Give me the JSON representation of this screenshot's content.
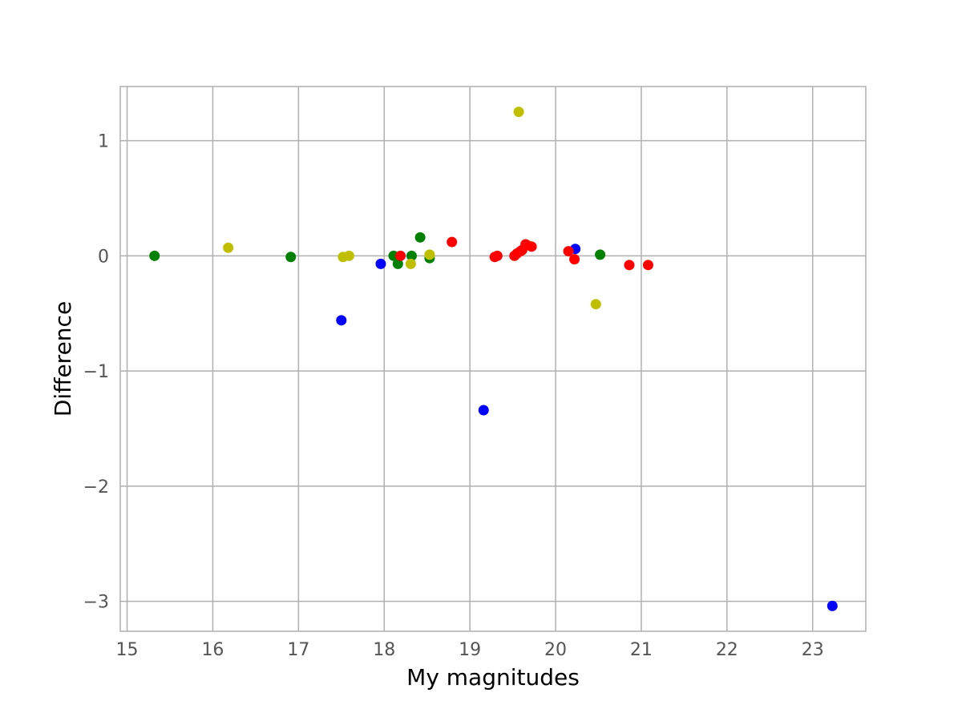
{
  "chart_data": {
    "type": "scatter",
    "title": "",
    "xlabel": "My magnitudes",
    "ylabel": "Difference",
    "xlim": [
      14.92,
      23.62
    ],
    "ylim": [
      -3.26,
      1.47
    ],
    "x_ticks": [
      15,
      16,
      17,
      18,
      19,
      20,
      21,
      22,
      23
    ],
    "y_ticks": [
      1,
      0,
      -1,
      -2,
      -3
    ],
    "x_tick_labels": [
      "15",
      "16",
      "17",
      "18",
      "19",
      "20",
      "21",
      "22",
      "23"
    ],
    "y_tick_labels": [
      "1",
      "0",
      "−1",
      "−2",
      "−3"
    ],
    "grid": true,
    "series": [
      {
        "color": "#0000ff",
        "points": [
          [
            17.5,
            -0.56
          ],
          [
            17.96,
            -0.07
          ],
          [
            19.16,
            -1.34
          ],
          [
            20.23,
            0.06
          ],
          [
            23.23,
            -3.04
          ]
        ]
      },
      {
        "color": "#008000",
        "points": [
          [
            15.32,
            0.0
          ],
          [
            16.91,
            -0.01
          ],
          [
            18.11,
            0.0
          ],
          [
            18.16,
            -0.07
          ],
          [
            18.32,
            0.0
          ],
          [
            18.42,
            0.16
          ],
          [
            18.53,
            -0.02
          ],
          [
            20.52,
            0.01
          ]
        ]
      },
      {
        "color": "#bfbf00",
        "points": [
          [
            16.18,
            0.07
          ],
          [
            17.52,
            -0.01
          ],
          [
            17.59,
            0.0
          ],
          [
            18.31,
            -0.07
          ],
          [
            18.53,
            0.01
          ],
          [
            19.57,
            1.25
          ],
          [
            19.68,
            0.09
          ],
          [
            20.47,
            -0.42
          ]
        ]
      },
      {
        "color": "#ff0000",
        "points": [
          [
            18.19,
            0.0
          ],
          [
            18.79,
            0.12
          ],
          [
            19.29,
            -0.01
          ],
          [
            19.32,
            0.0
          ],
          [
            19.52,
            0.0
          ],
          [
            19.55,
            0.02
          ],
          [
            19.59,
            0.04
          ],
          [
            19.61,
            0.05
          ],
          [
            19.65,
            0.1
          ],
          [
            19.72,
            0.08
          ],
          [
            20.15,
            0.04
          ],
          [
            20.22,
            -0.03
          ],
          [
            20.86,
            -0.08
          ],
          [
            21.08,
            -0.08
          ]
        ]
      }
    ]
  }
}
